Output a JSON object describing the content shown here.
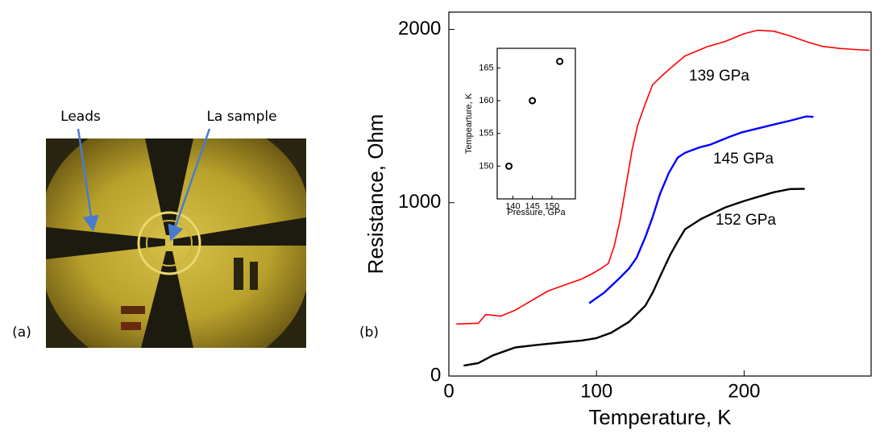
{
  "figure": {
    "panel_a": {
      "label": "(a)",
      "annotations": [
        "Leads",
        "La sample"
      ]
    },
    "panel_b": {
      "label": "(b)"
    }
  },
  "chart_data": [
    {
      "type": "line",
      "x_label": "Temperature, K",
      "y_label": "Resistance, Ohm",
      "xlim": [
        0,
        286
      ],
      "ylim": [
        0,
        2100
      ],
      "xticks": [
        0,
        100,
        200
      ],
      "yticks": [
        0,
        1000,
        2000
      ],
      "series": [
        {
          "name": "139 GPa",
          "color": "#ff0000",
          "x": [
            5,
            20,
            25,
            35,
            45,
            55,
            67,
            80,
            90,
            97,
            103,
            108,
            112,
            116,
            120,
            124,
            128,
            133,
            138,
            144,
            152,
            160,
            175,
            187,
            200,
            209,
            220,
            231,
            242,
            253,
            265,
            275,
            285
          ],
          "values": [
            300,
            305,
            355,
            345,
            380,
            430,
            490,
            530,
            560,
            590,
            620,
            650,
            750,
            900,
            1100,
            1300,
            1450,
            1570,
            1680,
            1730,
            1790,
            1847,
            1900,
            1930,
            1975,
            1995,
            1990,
            1963,
            1930,
            1902,
            1890,
            1884,
            1880
          ]
        },
        {
          "name": "145 GPa",
          "color": "#0000ff",
          "x": [
            95,
            105,
            115,
            122,
            127,
            133,
            138,
            143,
            149,
            155,
            160,
            170,
            177,
            190,
            198,
            210,
            220,
            232,
            242,
            247
          ],
          "values": [
            420,
            480,
            560,
            620,
            680,
            800,
            916,
            1050,
            1172,
            1260,
            1288,
            1320,
            1335,
            1380,
            1405,
            1430,
            1451,
            1475,
            1498,
            1495
          ]
        },
        {
          "name": "152 GPa",
          "color": "#000000",
          "x": [
            10,
            20,
            30,
            45,
            60,
            78,
            90,
            100,
            110,
            122,
            133,
            138,
            144,
            150,
            155,
            160,
            171,
            187,
            200,
            209,
            220,
            231,
            241
          ],
          "values": [
            60,
            75,
            120,
            165,
            180,
            195,
            205,
            219,
            250,
            312,
            405,
            480,
            591,
            700,
            777,
            847,
            907,
            972,
            1010,
            1033,
            1060,
            1079,
            1080
          ]
        }
      ]
    },
    {
      "type": "scatter",
      "x_label": "Pressure, GPa",
      "y_label": "Tempearture, K",
      "xlim": [
        136,
        156
      ],
      "ylim": [
        145,
        168
      ],
      "xticks": [
        140,
        145,
        150
      ],
      "yticks": [
        150,
        155,
        160,
        165
      ],
      "x": [
        139,
        145,
        152
      ],
      "values": [
        150,
        160,
        166
      ],
      "color": "#000000"
    }
  ]
}
